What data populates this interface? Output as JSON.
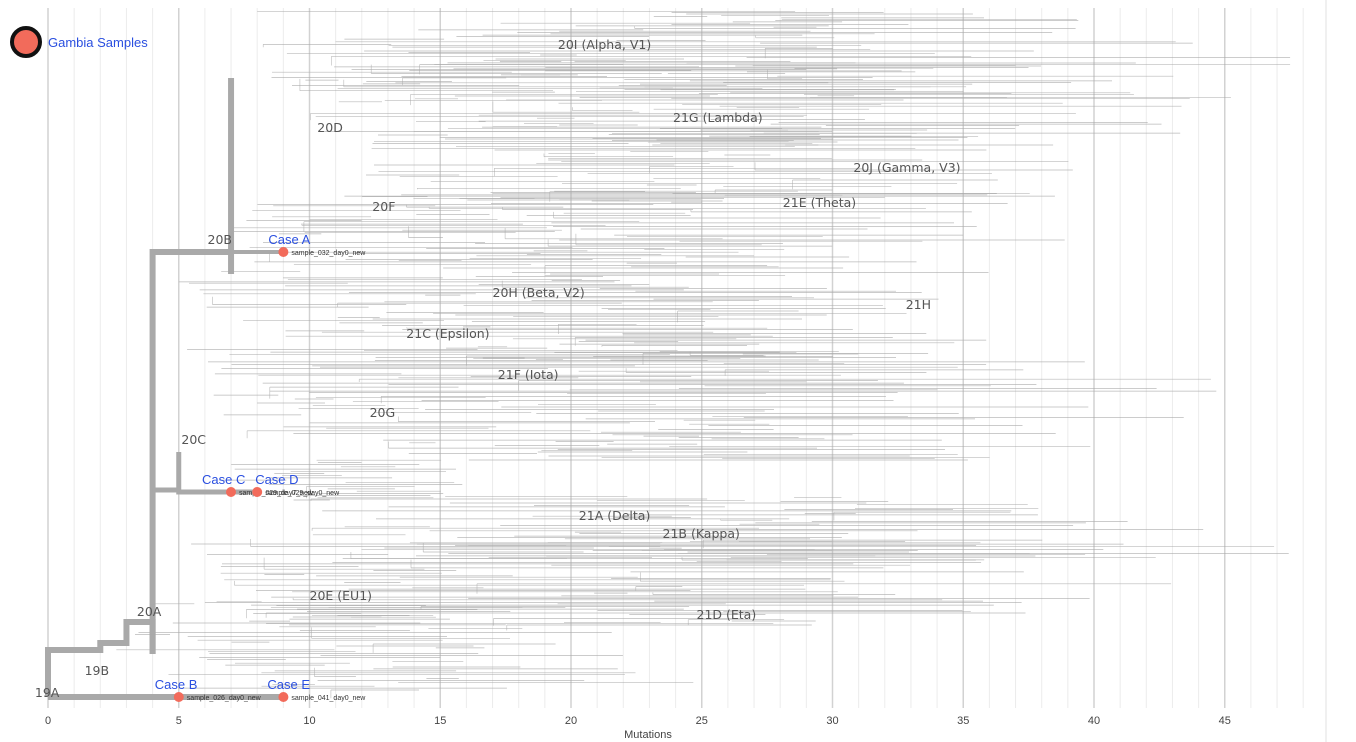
{
  "legend": {
    "label": "Gambia Samples",
    "color": "#f26b5b"
  },
  "chart_data": {
    "type": "phylogenetic-tree",
    "xlabel": "Mutations",
    "xlim": [
      0,
      48
    ],
    "xticks": [
      0,
      5,
      10,
      15,
      20,
      25,
      30,
      35,
      40,
      45
    ],
    "grid": true,
    "colors": {
      "branch": "#a9a9a9",
      "sample": "#f26b5b",
      "case_label": "#2a4fe0"
    },
    "clades": [
      {
        "name": "19A",
        "x": -0.5
      },
      {
        "name": "19B",
        "x": 1.4
      },
      {
        "name": "20A",
        "x": 3.4
      },
      {
        "name": "20B",
        "x": 6.1
      },
      {
        "name": "20C",
        "x": 5.1
      },
      {
        "name": "20D",
        "x": 10.3
      },
      {
        "name": "20F",
        "x": 12.4
      },
      {
        "name": "20I (Alpha, V1)",
        "x": 19.5
      },
      {
        "name": "21G (Lambda)",
        "x": 23.9
      },
      {
        "name": "20J (Gamma, V3)",
        "x": 30.8
      },
      {
        "name": "21E (Theta)",
        "x": 28.1
      },
      {
        "name": "20H (Beta, V2)",
        "x": 17.0
      },
      {
        "name": "21H",
        "x": 32.8
      },
      {
        "name": "21C (Epsilon)",
        "x": 13.7
      },
      {
        "name": "21F (Iota)",
        "x": 17.2
      },
      {
        "name": "20G",
        "x": 12.3
      },
      {
        "name": "21A (Delta)",
        "x": 20.3
      },
      {
        "name": "21B (Kappa)",
        "x": 23.5
      },
      {
        "name": "20E (EU1)",
        "x": 10.0
      },
      {
        "name": "21D (Eta)",
        "x": 24.8
      }
    ],
    "samples": [
      {
        "case": "Case A",
        "sample": "sample_032_day0_new",
        "mutations": 9,
        "clade": "20B"
      },
      {
        "case": "Case B",
        "sample": "sample_026_day0_new",
        "mutations": 5,
        "clade": "19B"
      },
      {
        "case": "Case C",
        "sample": "sample_029_day7_new",
        "mutations": 7,
        "clade": "20C"
      },
      {
        "case": "Case D",
        "sample": "sample_029_day0_new",
        "mutations": 8,
        "clade": "20C"
      },
      {
        "case": "Case E",
        "sample": "sample_041_day0_new",
        "mutations": 9,
        "clade": "19B"
      }
    ]
  }
}
